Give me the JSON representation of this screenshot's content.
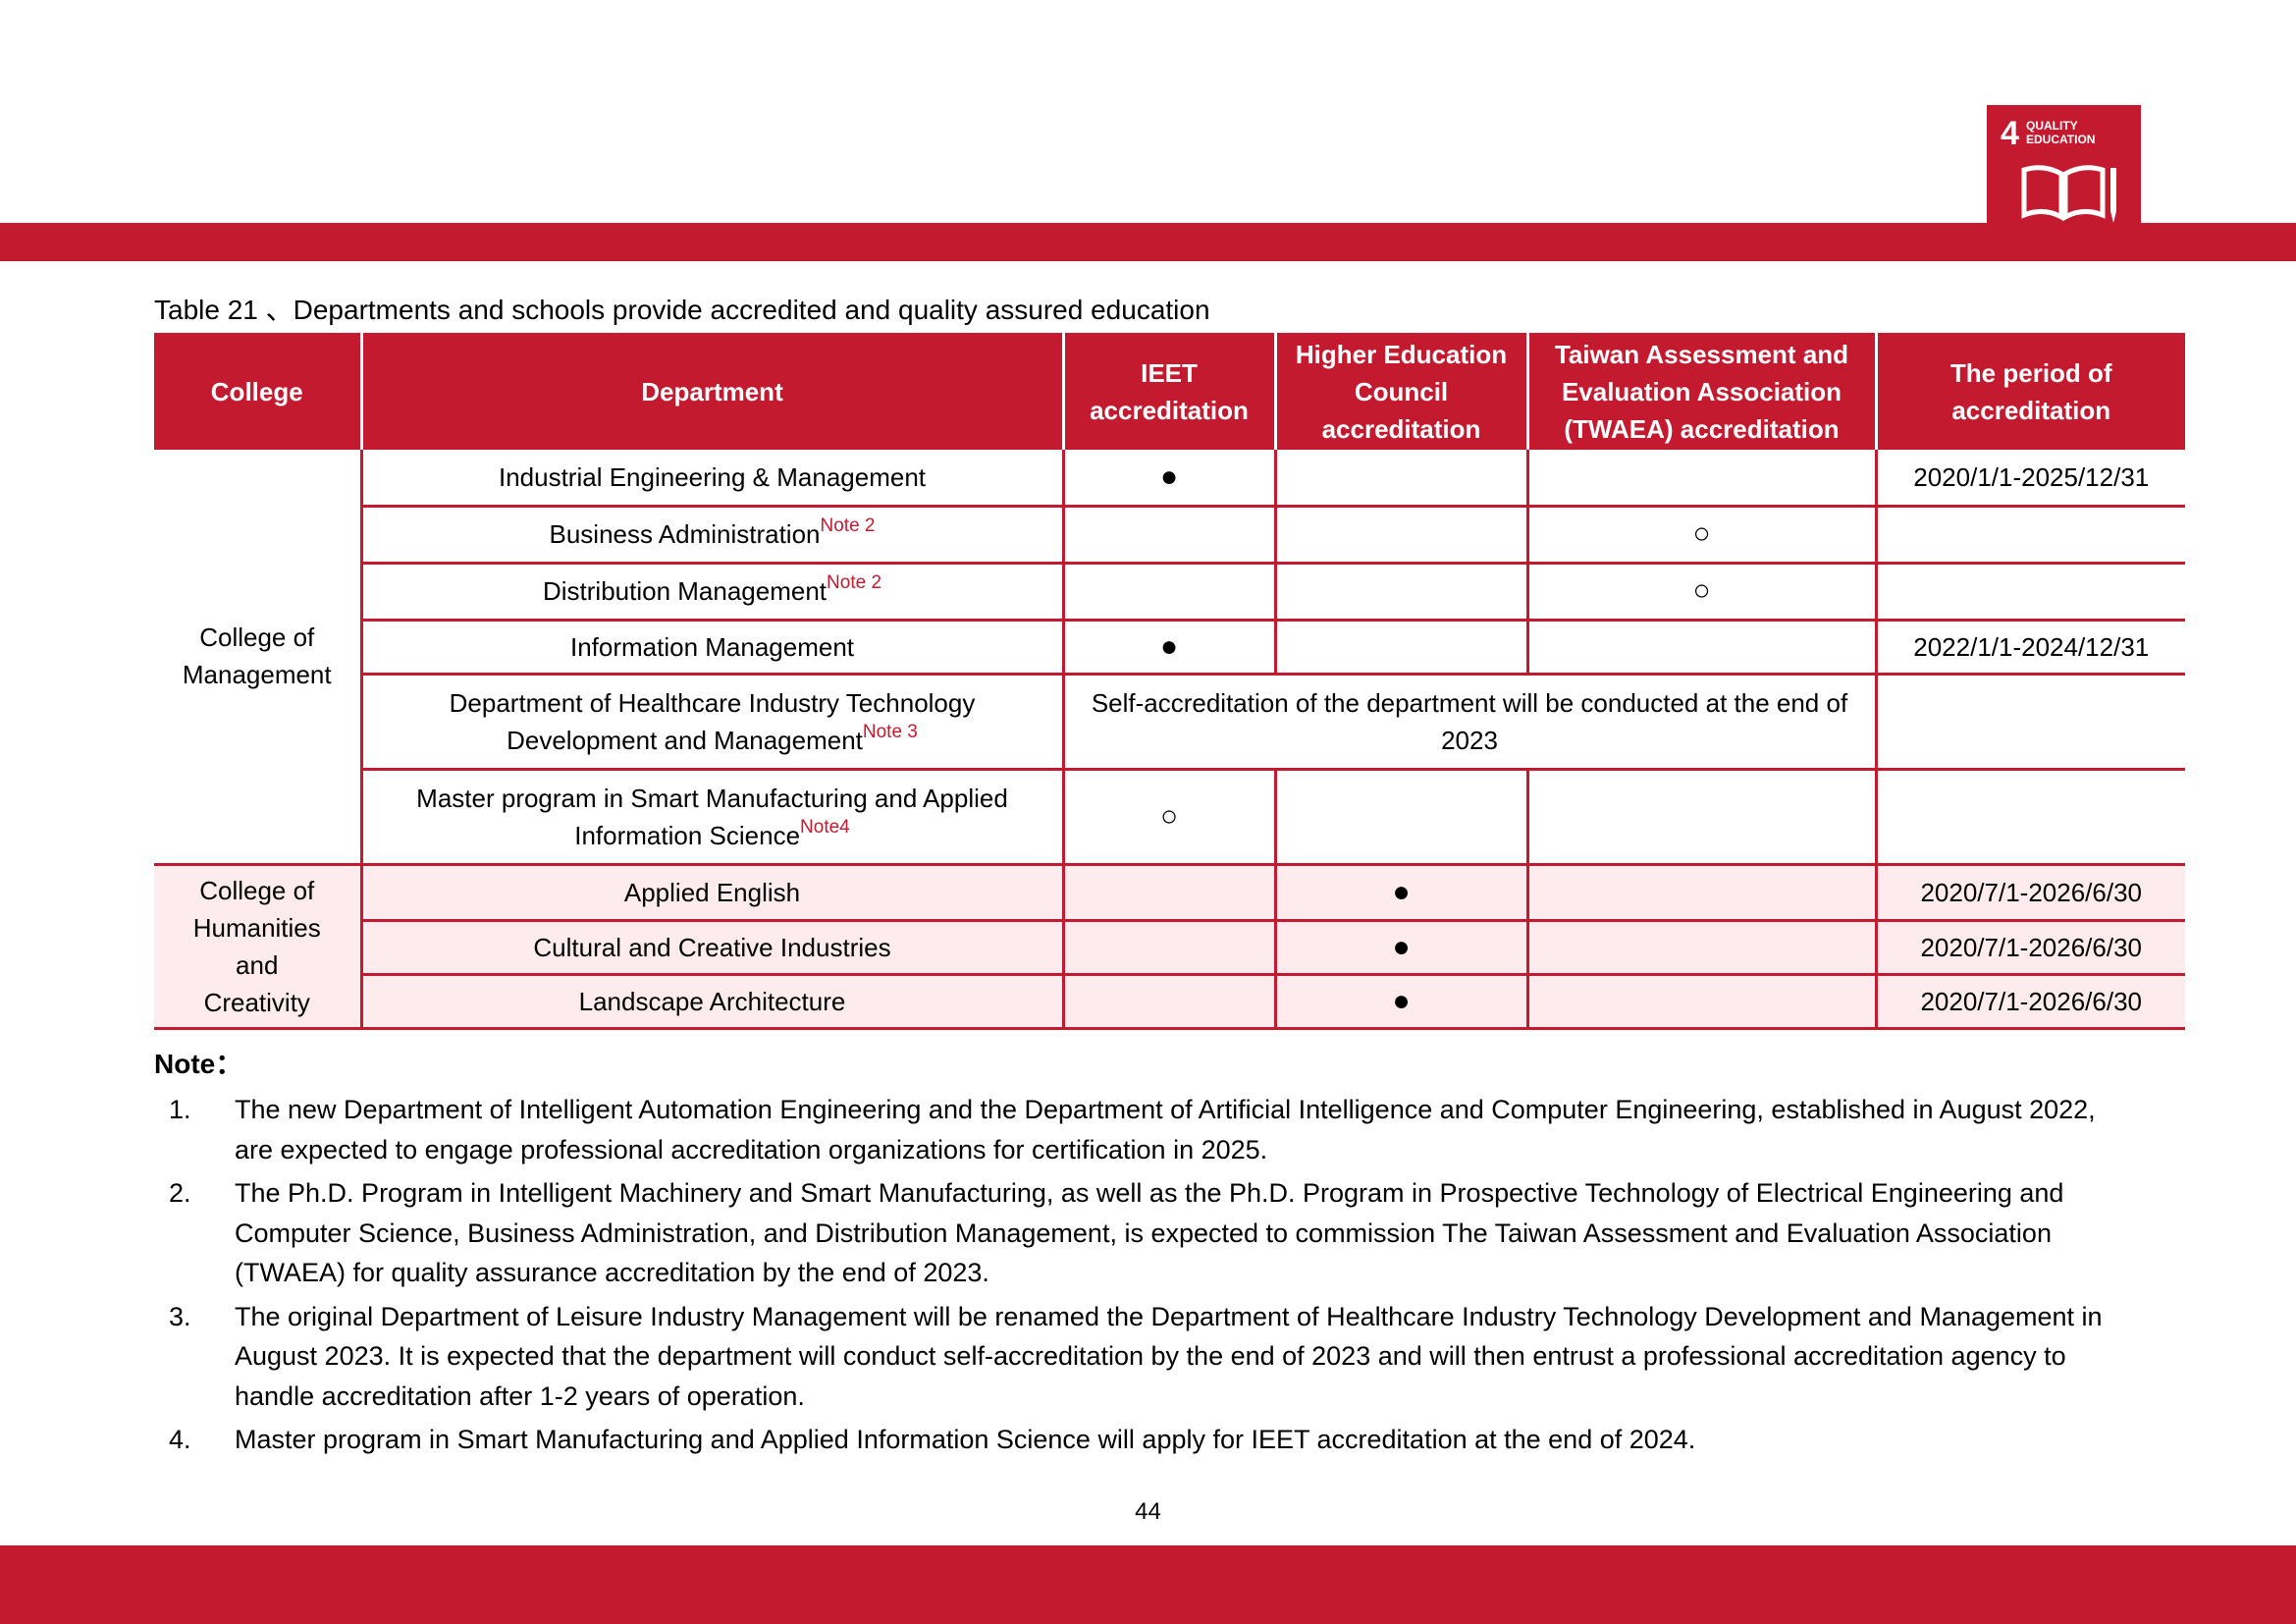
{
  "header": {
    "sdg_number": "4",
    "sdg_label": "QUALITY EDUCATION"
  },
  "caption": "Table 21 、Departments and schools provide accredited and quality assured education",
  "table": {
    "columns": {
      "college": "College",
      "department": "Department",
      "ieet": "IEET accreditation",
      "hec": "Higher Education Council accreditation",
      "twaea": "Taiwan Assessment and Evaluation Association (TWAEA) accreditation",
      "period": "The period of accreditation"
    },
    "groups": [
      {
        "college": "College of Management",
        "rows": [
          {
            "department": "Industrial Engineering & Management",
            "ieet": "●",
            "period": "2020/1/1-2025/12/31"
          },
          {
            "department": "Business Administration",
            "note": "Note 2",
            "twaea": "○"
          },
          {
            "department": "Distribution Management",
            "note": "Note 2",
            "twaea": "○"
          },
          {
            "department": "Information Management",
            "ieet": "●",
            "period": "2022/1/1-2024/12/31"
          },
          {
            "department": "Department of Healthcare Industry Technology Development and Management",
            "note": "Note 3",
            "merged": "Self-accreditation of the department will be conducted at the end of 2023"
          },
          {
            "department": "Master program in Smart Manufacturing and Applied Information Science",
            "note": "Note4",
            "ieet": "○"
          }
        ]
      },
      {
        "college": "College of Humanities and Creativity",
        "rows": [
          {
            "department": "Applied English",
            "hec": "●",
            "period": "2020/7/1-2026/6/30"
          },
          {
            "department": "Cultural and Creative Industries",
            "hec": "●",
            "period": "2020/7/1-2026/6/30"
          },
          {
            "department": "Landscape Architecture",
            "hec": "●",
            "period": "2020/7/1-2026/6/30"
          }
        ]
      }
    ]
  },
  "notes": {
    "title": "Note：",
    "items": [
      {
        "number": "1.",
        "text": "The new Department of Intelligent Automation Engineering and the Department of Artificial Intelligence and Computer Engineering, established in August 2022, are expected to engage professional accreditation organizations for certification in 2025."
      },
      {
        "number": "2.",
        "text": "The Ph.D. Program in Intelligent Machinery and Smart Manufacturing, as well as the Ph.D. Program in Prospective Technology of Electrical Engineering and Computer Science, Business Administration, and Distribution Management, is expected to commission The Taiwan Assessment and Evaluation Association (TWAEA) for quality assurance accreditation by the end of 2023."
      },
      {
        "number": "3.",
        "text": "The original Department of Leisure Industry Management will be renamed the Department of Healthcare Industry Technology Development and Management in August 2023. It is expected that the department will conduct self-accreditation by the end of 2023 and will then entrust a professional accreditation agency to handle accreditation after 1-2 years of operation."
      },
      {
        "number": "4.",
        "text": "Master program in Smart Manufacturing and Applied Information Science will apply for IEET accreditation at the end of 2024."
      }
    ]
  },
  "page_number": "44"
}
